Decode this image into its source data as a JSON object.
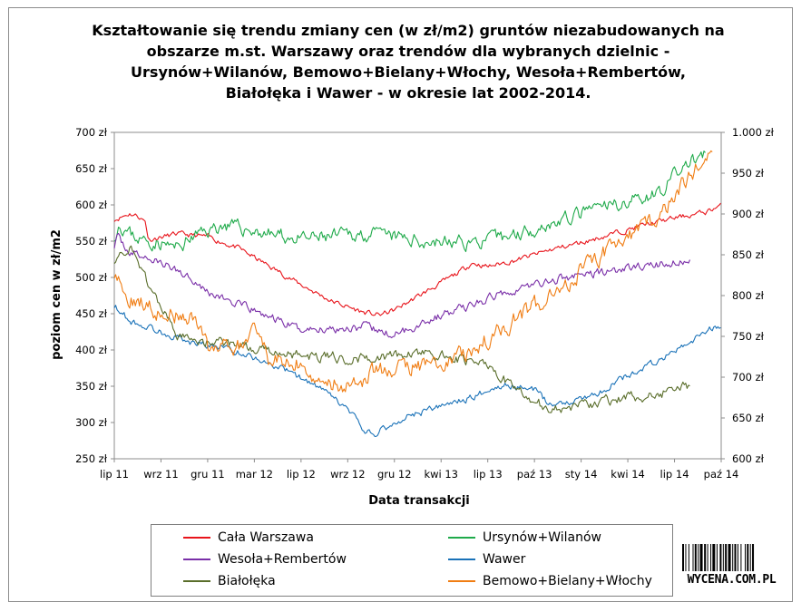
{
  "title": "Kształtowanie się trendu zmiany cen (w zł/m2) gruntów niezabudowanych na obszarze m.st. Warszawy oraz trendów dla wybranych dzielnic - Ursynów+Wilanów, Bemowo+Bielany+Włochy, Wesoła+Rembertów, Białołęka i Wawer - w okresie lat 2002-2014.",
  "watermark": "WYCENA.COM.PL",
  "chart_data": {
    "type": "line",
    "title": "Kształtowanie się trendu zmiany cen (w zł/m2) gruntów niezabudowanych na obszarze m.st. Warszawy oraz trendów dla wybranych dzielnic - Ursynów+Wilanów, Bemowo+Bielany+Włochy, Wesoła+Rembertów, Białołęka i Wawer - w okresie lat 2002-2014.",
    "xlabel": "Data transakcji",
    "ylabel": "poziom cen w zł/m2",
    "x_ticks": [
      "lip 11",
      "wrz 11",
      "gru 11",
      "mar 12",
      "lip 12",
      "wrz 12",
      "gru 12",
      "kwi 13",
      "lip 13",
      "paź 13",
      "sty 14",
      "kwi 14",
      "lip 14",
      "paź 14"
    ],
    "x_range_months": [
      0,
      39
    ],
    "y_left_ticks": [
      "250 zł",
      "300 zł",
      "350 zł",
      "400 zł",
      "450 zł",
      "500 zł",
      "550 zł",
      "600 zł",
      "650 zł",
      "700 zł"
    ],
    "y_left_range": [
      250,
      700
    ],
    "y_right_ticks": [
      "600 zł",
      "650 zł",
      "700 zł",
      "750 zł",
      "800 zł",
      "850 zł",
      "900 zł",
      "950 zł",
      "1.000 zł"
    ],
    "y_right_range": [
      600,
      1000
    ],
    "legend_position": "bottom",
    "series": [
      {
        "name": "Cała Warszawa",
        "color": "#e8141b",
        "axis": "left",
        "noise": 3,
        "seed": 11,
        "points": [
          [
            0,
            580
          ],
          [
            1,
            588
          ],
          [
            1.5,
            585
          ],
          [
            2,
            577
          ],
          [
            2.2,
            552
          ],
          [
            4,
            560
          ],
          [
            6,
            556
          ],
          [
            8,
            540
          ],
          [
            10,
            515
          ],
          [
            12,
            490
          ],
          [
            14,
            467
          ],
          [
            16,
            452
          ],
          [
            17,
            448
          ],
          [
            18,
            455
          ],
          [
            20,
            480
          ],
          [
            22,
            505
          ],
          [
            23,
            520
          ],
          [
            24,
            515
          ],
          [
            26,
            525
          ],
          [
            28,
            538
          ],
          [
            30,
            548
          ],
          [
            32,
            560
          ],
          [
            34,
            572
          ],
          [
            36,
            582
          ],
          [
            38,
            590
          ],
          [
            39,
            600
          ]
        ]
      },
      {
        "name": "Ursynów+Wilanów",
        "color": "#1faa4a",
        "axis": "left",
        "noise": 8,
        "seed": 23,
        "points": [
          [
            0,
            558
          ],
          [
            0.3,
            575
          ],
          [
            1,
            560
          ],
          [
            2,
            550
          ],
          [
            3,
            548
          ],
          [
            4,
            540
          ],
          [
            5,
            555
          ],
          [
            6,
            565
          ],
          [
            7,
            572
          ],
          [
            8,
            568
          ],
          [
            10,
            560
          ],
          [
            12,
            552
          ],
          [
            14,
            556
          ],
          [
            16,
            560
          ],
          [
            18,
            555
          ],
          [
            20,
            550
          ],
          [
            22,
            548
          ],
          [
            24,
            550
          ],
          [
            25,
            555
          ],
          [
            27,
            568
          ],
          [
            29,
            580
          ],
          [
            31,
            595
          ],
          [
            33,
            605
          ],
          [
            35,
            618
          ],
          [
            36,
            640
          ],
          [
            37,
            660
          ],
          [
            38,
            668
          ]
        ]
      },
      {
        "name": "Wesoła+Rembertów",
        "color": "#7a2fa8",
        "axis": "left",
        "noise": 5,
        "seed": 37,
        "points": [
          [
            0,
            545
          ],
          [
            0.2,
            555
          ],
          [
            1,
            535
          ],
          [
            3,
            520
          ],
          [
            5,
            500
          ],
          [
            6,
            480
          ],
          [
            8,
            462
          ],
          [
            10,
            445
          ],
          [
            12,
            428
          ],
          [
            14,
            430
          ],
          [
            16,
            432
          ],
          [
            18,
            420
          ],
          [
            20,
            440
          ],
          [
            22,
            455
          ],
          [
            24,
            470
          ],
          [
            25,
            480
          ],
          [
            27,
            490
          ],
          [
            29,
            500
          ],
          [
            31,
            506
          ],
          [
            33,
            512
          ],
          [
            35,
            518
          ],
          [
            37,
            522
          ]
        ]
      },
      {
        "name": "Wawer",
        "color": "#1a72b8",
        "axis": "left",
        "noise": 4,
        "seed": 53,
        "points": [
          [
            0,
            462
          ],
          [
            1,
            440
          ],
          [
            3,
            425
          ],
          [
            5,
            410
          ],
          [
            7,
            403
          ],
          [
            9,
            390
          ],
          [
            11,
            372
          ],
          [
            13,
            350
          ],
          [
            15,
            318
          ],
          [
            16,
            290
          ],
          [
            16.6,
            283
          ],
          [
            17.2,
            290
          ],
          [
            19,
            310
          ],
          [
            21,
            322
          ],
          [
            23,
            335
          ],
          [
            24,
            345
          ],
          [
            25,
            352
          ],
          [
            27,
            345
          ],
          [
            28,
            325
          ],
          [
            30,
            332
          ],
          [
            31,
            340
          ],
          [
            33,
            365
          ],
          [
            35,
            385
          ],
          [
            37,
            410
          ],
          [
            38,
            425
          ],
          [
            39,
            435
          ]
        ]
      },
      {
        "name": "Białołęka",
        "color": "#5a6e2b",
        "axis": "left",
        "noise": 6,
        "seed": 71,
        "points": [
          [
            0,
            525
          ],
          [
            1,
            540
          ],
          [
            1.5,
            520
          ],
          [
            2,
            500
          ],
          [
            3,
            460
          ],
          [
            4,
            420
          ],
          [
            5,
            410
          ],
          [
            6,
            412
          ],
          [
            8,
            405
          ],
          [
            10,
            398
          ],
          [
            12,
            392
          ],
          [
            14,
            390
          ],
          [
            16,
            388
          ],
          [
            18,
            392
          ],
          [
            20,
            395
          ],
          [
            22,
            388
          ],
          [
            24,
            380
          ],
          [
            25,
            360
          ],
          [
            26,
            345
          ],
          [
            27,
            330
          ],
          [
            28,
            318
          ],
          [
            29,
            320
          ],
          [
            30,
            325
          ],
          [
            31,
            328
          ],
          [
            33,
            335
          ],
          [
            35,
            340
          ],
          [
            36,
            345
          ],
          [
            37,
            352
          ]
        ]
      },
      {
        "name": "Bemowo+Bielany+Włochy",
        "color": "#f07d13",
        "axis": "right",
        "noise": 9,
        "seed": 89,
        "points": [
          [
            0,
            830
          ],
          [
            1,
            795
          ],
          [
            2,
            790
          ],
          [
            3,
            780
          ],
          [
            4,
            775
          ],
          [
            5,
            770
          ],
          [
            6,
            735
          ],
          [
            7,
            742
          ],
          [
            8,
            738
          ],
          [
            9,
            752
          ],
          [
            10,
            720
          ],
          [
            12,
            718
          ],
          [
            13,
            700
          ],
          [
            15,
            688
          ],
          [
            17,
            708
          ],
          [
            19,
            712
          ],
          [
            21,
            720
          ],
          [
            23,
            732
          ],
          [
            24,
            748
          ],
          [
            25,
            760
          ],
          [
            26,
            775
          ],
          [
            28,
            800
          ],
          [
            30,
            830
          ],
          [
            32,
            860
          ],
          [
            34,
            880
          ],
          [
            36,
            920
          ],
          [
            37,
            950
          ],
          [
            38,
            965
          ],
          [
            38.5,
            985
          ]
        ]
      }
    ]
  },
  "legend": {
    "items": [
      {
        "label": "Cała Warszawa",
        "color": "#e8141b"
      },
      {
        "label": "Ursynów+Wilanów",
        "color": "#1faa4a"
      },
      {
        "label": "Wesoła+Rembertów",
        "color": "#7a2fa8"
      },
      {
        "label": "Wawer",
        "color": "#1a72b8"
      },
      {
        "label": "Białołęka",
        "color": "#5a6e2b"
      },
      {
        "label": "Bemowo+Bielany+Włochy",
        "color": "#f07d13"
      }
    ]
  }
}
